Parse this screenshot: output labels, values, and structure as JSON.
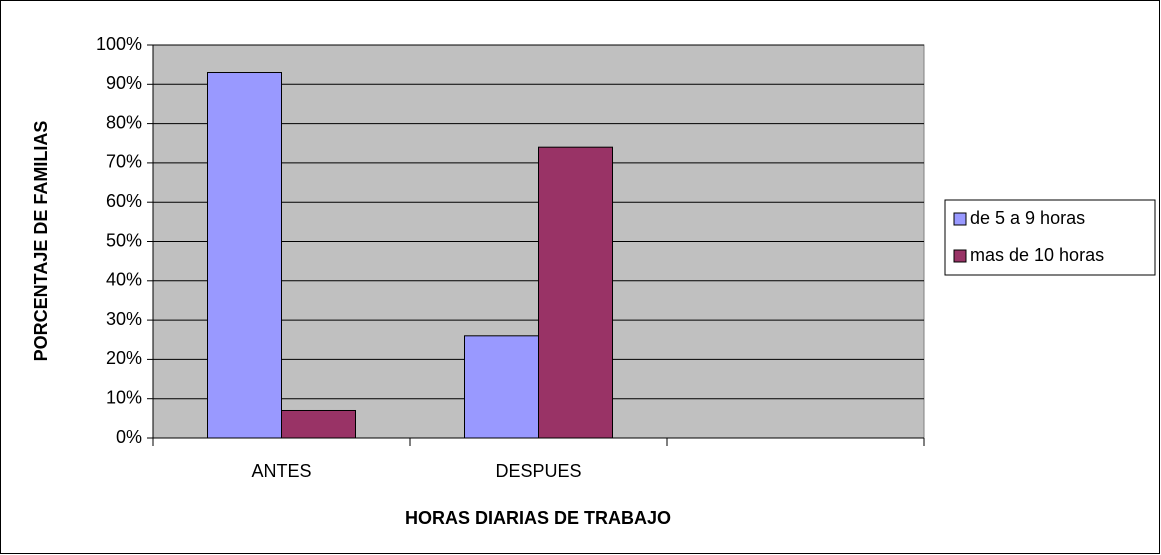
{
  "chart_data": {
    "type": "bar",
    "xlabel": "HORAS DIARIAS DE TRABAJO",
    "ylabel": "PORCENTAJE DE FAMILIAS",
    "categories": [
      "ANTES",
      "DESPUES",
      null
    ],
    "series": [
      {
        "name": "de 5 a 9 horas",
        "color": "#9999ff",
        "values": [
          93,
          26,
          null
        ]
      },
      {
        "name": "mas de 10 horas",
        "color": "#993366",
        "values": [
          7,
          74,
          null
        ]
      }
    ],
    "ylim": [
      0,
      100
    ],
    "yticks": [
      {
        "value": 0,
        "label": "0%"
      },
      {
        "value": 10,
        "label": "10%"
      },
      {
        "value": 20,
        "label": "20%"
      },
      {
        "value": 30,
        "label": "30%"
      },
      {
        "value": 40,
        "label": "40%"
      },
      {
        "value": 50,
        "label": "50%"
      },
      {
        "value": 60,
        "label": "60%"
      },
      {
        "value": 70,
        "label": "70%"
      },
      {
        "value": 80,
        "label": "80%"
      },
      {
        "value": 90,
        "label": "90%"
      },
      {
        "value": 100,
        "label": "100%"
      }
    ],
    "grid": true,
    "legend": "right"
  }
}
